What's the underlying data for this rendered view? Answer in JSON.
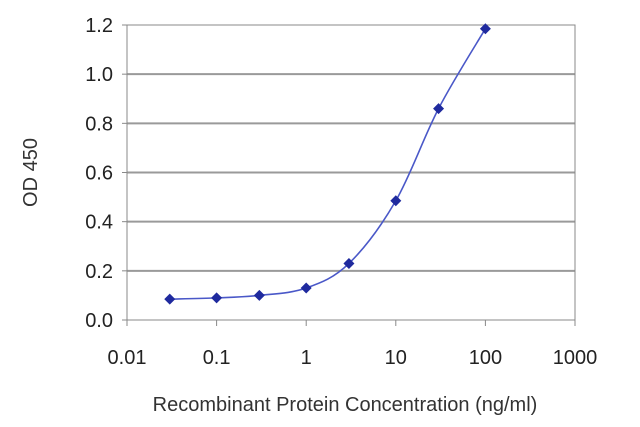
{
  "chart_data": {
    "type": "scatter",
    "title": "",
    "xlabel": "Recombinant Protein Concentration (ng/ml)",
    "ylabel": "OD 450",
    "x_scale": "log",
    "xlim": [
      0.01,
      1000
    ],
    "ylim": [
      0,
      1.2
    ],
    "x_tick_labels": [
      "0.01",
      "0.1",
      "1",
      "10",
      "100",
      "1000"
    ],
    "y_tick_labels": [
      "0.0",
      "0.2",
      "0.4",
      "0.6",
      "0.8",
      "1.0",
      "1.2"
    ],
    "grid": "horizontal",
    "legend": "none",
    "series": [
      {
        "x": [
          0.03,
          0.1,
          0.3,
          1,
          3,
          10,
          30,
          100
        ],
        "y": [
          0.085,
          0.09,
          0.1,
          0.13,
          0.23,
          0.485,
          0.86,
          1.185
        ]
      }
    ],
    "colors": {
      "series": "#1f2a9e",
      "line": "#4a58c8",
      "grid": "#9a9a9a",
      "axis": "#888888"
    }
  }
}
